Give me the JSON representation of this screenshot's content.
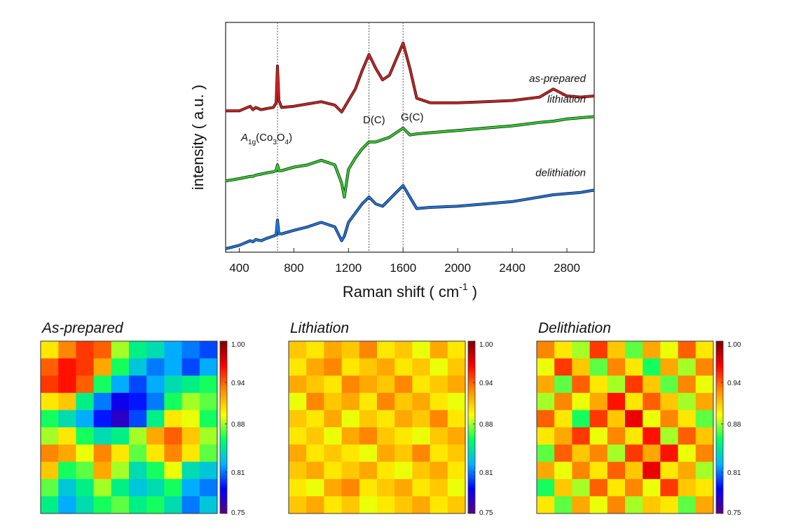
{
  "chart_data": [
    {
      "type": "line",
      "ylabel": "intensity ( a.u. )",
      "xlabel": [
        "Raman shift ( cm",
        "-1",
        " )"
      ],
      "x": [
        300,
        400,
        480,
        500,
        520,
        560,
        600,
        650,
        670,
        680,
        690,
        710,
        800,
        900,
        1000,
        1100,
        1150,
        1170,
        1200,
        1250,
        1300,
        1350,
        1400,
        1450,
        1500,
        1550,
        1600,
        1650,
        1700,
        1800,
        2000,
        2200,
        2400,
        2600,
        2700,
        2800,
        2900,
        3000
      ],
      "xlim": [
        300,
        3000
      ],
      "xticks": [
        400,
        800,
        1200,
        1600,
        2000,
        2400,
        2800
      ],
      "ylim": [
        0,
        100
      ],
      "vlines": [
        680,
        1350,
        1600
      ],
      "annotations": [
        [
          "A",
          "1g",
          "(Co",
          "3",
          "O",
          "4",
          ")"
        ],
        "D(C)",
        "G(C)"
      ],
      "series": [
        {
          "name": "as-prepared",
          "color": "#d42020",
          "values": [
            61.5,
            61.5,
            63.5,
            62,
            63,
            62,
            62.5,
            63,
            65,
            81,
            66,
            63,
            63.5,
            64.5,
            65.5,
            64,
            61,
            63,
            66,
            71,
            79,
            86,
            80,
            75,
            77,
            84,
            91,
            80,
            67,
            65,
            65,
            65.5,
            66,
            67.5,
            71,
            68,
            67.5,
            68
          ]
        },
        {
          "name": "lithiation",
          "color": "#2fd42a",
          "values": [
            31,
            32,
            33,
            33,
            33.5,
            34,
            34.5,
            35,
            35.5,
            38,
            35.5,
            35.5,
            37,
            38,
            40,
            38,
            30,
            24,
            36,
            41,
            45,
            48,
            48,
            49,
            50,
            52,
            54,
            51,
            51.5,
            52,
            53,
            54,
            55,
            56.5,
            57,
            58,
            58.5,
            59
          ]
        },
        {
          "name": "delithiation",
          "color": "#1e78e6",
          "values": [
            1.5,
            3,
            5,
            4.5,
            5.5,
            5,
            6,
            7,
            7.5,
            14,
            8,
            8,
            9.5,
            11,
            13,
            11,
            5,
            7,
            13,
            17,
            21,
            24,
            21,
            20,
            23,
            26,
            29,
            24,
            19,
            19.5,
            20,
            21,
            22,
            24,
            25,
            25.5,
            26,
            27
          ]
        }
      ]
    },
    {
      "type": "heatmap",
      "title": "As-prepared",
      "zlim": [
        0.75,
        1
      ],
      "zticks": [
        {
          "value": 1,
          "label": "1.00"
        },
        0.94,
        0.88,
        0.81,
        0.75
      ],
      "colormap": [
        "#5a007f",
        "#0000ff",
        "#00b4ff",
        "#00ff66",
        "#ffff00",
        "#ff8c00",
        "#ff0000",
        "#7f0000"
      ],
      "values": [
        [
          0.9,
          0.93,
          0.95,
          0.94,
          0.88,
          0.85,
          0.84,
          0.82,
          0.81,
          0.8
        ],
        [
          0.94,
          0.96,
          0.95,
          0.92,
          0.86,
          0.83,
          0.81,
          0.82,
          0.8,
          0.82
        ],
        [
          0.95,
          0.96,
          0.94,
          0.86,
          0.82,
          0.8,
          0.82,
          0.84,
          0.85,
          0.86
        ],
        [
          0.9,
          0.91,
          0.85,
          0.81,
          0.78,
          0.79,
          0.81,
          0.86,
          0.88,
          0.87
        ],
        [
          0.86,
          0.84,
          0.82,
          0.79,
          0.77,
          0.8,
          0.85,
          0.9,
          0.89,
          0.86
        ],
        [
          0.88,
          0.9,
          0.86,
          0.84,
          0.85,
          0.88,
          0.92,
          0.94,
          0.91,
          0.88
        ],
        [
          0.93,
          0.92,
          0.89,
          0.93,
          0.9,
          0.87,
          0.9,
          0.93,
          0.9,
          0.87
        ],
        [
          0.91,
          0.86,
          0.87,
          0.92,
          0.88,
          0.84,
          0.86,
          0.89,
          0.84,
          0.83
        ],
        [
          0.87,
          0.83,
          0.85,
          0.88,
          0.85,
          0.83,
          0.84,
          0.86,
          0.82,
          0.81
        ],
        [
          0.85,
          0.82,
          0.84,
          0.86,
          0.87,
          0.85,
          0.86,
          0.84,
          0.81,
          0.83
        ]
      ]
    },
    {
      "type": "heatmap",
      "title": "Lithiation",
      "zlim": [
        0.75,
        1
      ],
      "zticks": [
        {
          "value": 1,
          "label": "1.00"
        },
        0.94,
        0.88,
        0.81,
        0.75
      ],
      "colormap": [
        "#5a007f",
        "#0000ff",
        "#00b4ff",
        "#00ff66",
        "#ffff00",
        "#ff8c00",
        "#ff0000",
        "#7f0000"
      ],
      "values": [
        [
          0.91,
          0.9,
          0.92,
          0.91,
          0.93,
          0.9,
          0.91,
          0.89,
          0.92,
          0.9
        ],
        [
          0.9,
          0.92,
          0.93,
          0.9,
          0.91,
          0.92,
          0.9,
          0.91,
          0.89,
          0.91
        ],
        [
          0.92,
          0.91,
          0.9,
          0.93,
          0.92,
          0.91,
          0.93,
          0.9,
          0.91,
          0.92
        ],
        [
          0.89,
          0.93,
          0.91,
          0.92,
          0.9,
          0.93,
          0.91,
          0.92,
          0.9,
          0.89
        ],
        [
          0.91,
          0.9,
          0.92,
          0.89,
          0.91,
          0.9,
          0.92,
          0.91,
          0.93,
          0.9
        ],
        [
          0.9,
          0.91,
          0.89,
          0.92,
          0.93,
          0.91,
          0.9,
          0.89,
          0.91,
          0.92
        ],
        [
          0.92,
          0.9,
          0.91,
          0.9,
          0.89,
          0.92,
          0.91,
          0.93,
          0.9,
          0.91
        ],
        [
          0.91,
          0.92,
          0.9,
          0.91,
          0.92,
          0.9,
          0.89,
          0.91,
          0.92,
          0.9
        ],
        [
          0.9,
          0.89,
          0.92,
          0.93,
          0.9,
          0.91,
          0.92,
          0.9,
          0.91,
          0.89
        ],
        [
          0.91,
          0.92,
          0.9,
          0.91,
          0.89,
          0.9,
          0.91,
          0.92,
          0.9,
          0.91
        ]
      ]
    },
    {
      "type": "heatmap",
      "title": "Delithiation",
      "zlim": [
        0.75,
        1
      ],
      "zticks": [
        {
          "value": 1,
          "label": "1.00"
        },
        0.94,
        0.88,
        0.81,
        0.75
      ],
      "colormap": [
        "#5a007f",
        "#0000ff",
        "#00b4ff",
        "#00ff66",
        "#ffff00",
        "#ff8c00",
        "#ff0000",
        "#7f0000"
      ],
      "values": [
        [
          0.93,
          0.9,
          0.88,
          0.95,
          0.91,
          0.87,
          0.92,
          0.89,
          0.94,
          0.9
        ],
        [
          0.89,
          0.95,
          0.91,
          0.87,
          0.93,
          0.9,
          0.86,
          0.92,
          0.88,
          0.93
        ],
        [
          0.92,
          0.87,
          0.94,
          0.9,
          0.88,
          0.95,
          0.91,
          0.87,
          0.93,
          0.89
        ],
        [
          0.88,
          0.93,
          0.89,
          0.92,
          0.96,
          0.9,
          0.94,
          0.91,
          0.88,
          0.92
        ],
        [
          0.94,
          0.9,
          0.86,
          0.95,
          0.91,
          0.97,
          0.89,
          0.93,
          0.9,
          0.87
        ],
        [
          0.9,
          0.92,
          0.95,
          0.89,
          0.93,
          0.9,
          0.96,
          0.88,
          0.94,
          0.91
        ],
        [
          0.87,
          0.94,
          0.91,
          0.93,
          0.88,
          0.95,
          0.92,
          0.96,
          0.89,
          0.93
        ],
        [
          0.92,
          0.89,
          0.93,
          0.9,
          0.94,
          0.91,
          0.97,
          0.9,
          0.92,
          0.88
        ],
        [
          0.86,
          0.91,
          0.88,
          0.94,
          0.9,
          0.93,
          0.89,
          0.95,
          0.91,
          0.9
        ],
        [
          0.9,
          0.87,
          0.92,
          0.89,
          0.93,
          0.88,
          0.91,
          0.9,
          0.87,
          0.92
        ]
      ]
    }
  ]
}
